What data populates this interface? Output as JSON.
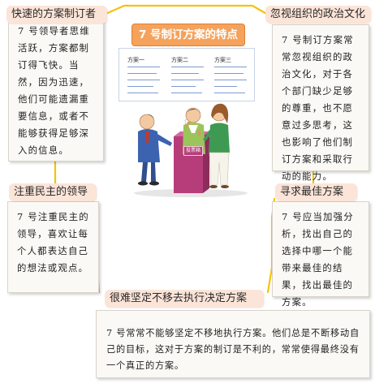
{
  "center": {
    "title": "7 号制订方案的特点",
    "doc_columns": [
      "方案一",
      "方案二",
      "方案三"
    ],
    "ballot_box_label": "投票箱"
  },
  "boxes": {
    "top_left": {
      "tag": "快速的方案制订者",
      "text": "7 号领导者思维活跃，方案都制订得飞快。当然，因为迅速，他们可能遗漏重要信息，或者不能够获得足够深入的信息。"
    },
    "top_right": {
      "tag": "忽视组织的政治文化",
      "text": "7 号制订方案常常忽视组织的政治文化，对于各个部门缺少足够的尊重，也不愿意过多思考，这也影响了他们制订方案和采取行动的能力。"
    },
    "mid_left": {
      "tag": "注重民主的领导",
      "text": "7 号注重民主的领导，喜欢让每个人都表达自己的想法或观点。"
    },
    "mid_right": {
      "tag": "寻求最佳方案",
      "text": "7 号应当加强分析，找出自己的选择中哪一个能带来最佳的结果，找出最佳的方案。"
    },
    "bottom": {
      "tag": "很难坚定不移去执行决定方案",
      "text": "7 号常常不能够坚定不移地执行方案。他们总是不断移动自己的目标，这对于方案的制订是不利的，常常使得最终没有一个真正的方案。"
    }
  },
  "colors": {
    "frame_yellow": "#f3c20f",
    "tag_pink": "#fbe4d8",
    "title_orange": "#f5a25c",
    "doc_line_blue": "#7d9bd0",
    "ballot_box_magenta": "#b73d7a"
  }
}
